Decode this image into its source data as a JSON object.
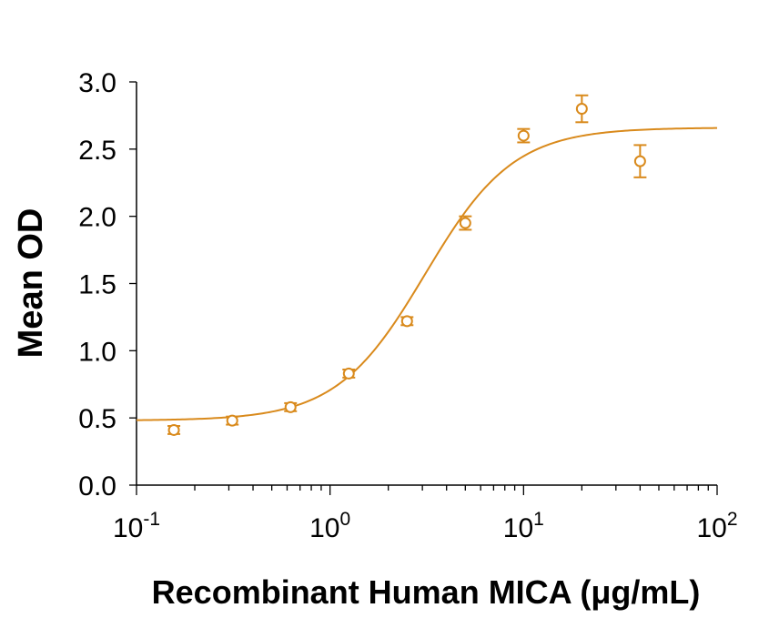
{
  "chart_data": {
    "type": "scatter",
    "title": "",
    "xlabel": "Recombinant Human MICA (μg/mL)",
    "ylabel": "Mean OD",
    "xscale": "log",
    "xlim": [
      0.1,
      100
    ],
    "ylim": [
      0,
      3.0
    ],
    "grid": false,
    "legend": "none",
    "x_ticks": [
      {
        "value": 0.1,
        "base": "10",
        "exp": "-1"
      },
      {
        "value": 1,
        "base": "10",
        "exp": "0"
      },
      {
        "value": 10,
        "base": "10",
        "exp": "1"
      },
      {
        "value": 100,
        "base": "10",
        "exp": "2"
      }
    ],
    "y_ticks": [
      {
        "value": 0.0,
        "label": "0.0"
      },
      {
        "value": 0.5,
        "label": "0.5"
      },
      {
        "value": 1.0,
        "label": "1.0"
      },
      {
        "value": 1.5,
        "label": "1.5"
      },
      {
        "value": 2.0,
        "label": "2.0"
      },
      {
        "value": 2.5,
        "label": "2.5"
      },
      {
        "value": 3.0,
        "label": "3.0"
      }
    ],
    "series": [
      {
        "color": "#D98A1C",
        "marker": "open-circle",
        "points": [
          {
            "x": 0.156,
            "y": 0.41,
            "err": 0.03
          },
          {
            "x": 0.3125,
            "y": 0.48,
            "err": 0.03
          },
          {
            "x": 0.625,
            "y": 0.58,
            "err": 0.03
          },
          {
            "x": 1.25,
            "y": 0.83,
            "err": 0.03
          },
          {
            "x": 2.5,
            "y": 1.22,
            "err": 0.03
          },
          {
            "x": 5,
            "y": 1.95,
            "err": 0.05
          },
          {
            "x": 10,
            "y": 2.6,
            "err": 0.05
          },
          {
            "x": 20,
            "y": 2.8,
            "err": 0.1
          },
          {
            "x": 40,
            "y": 2.41,
            "err": 0.12
          }
        ],
        "fit": {
          "type": "4PL",
          "bottom": 0.48,
          "top": 2.66,
          "ec50": 3.1,
          "hill": 1.9
        }
      }
    ]
  }
}
